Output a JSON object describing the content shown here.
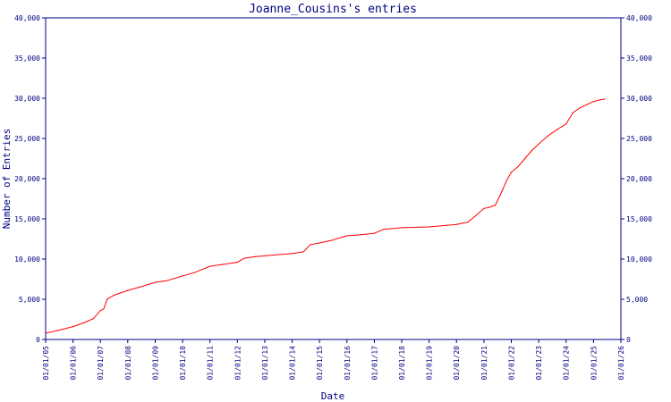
{
  "chart_data": {
    "type": "line",
    "title": "Joanne_Cousins's entries",
    "xlabel": "Date",
    "ylabel": "Number of Entries",
    "ylim": [
      0,
      40000
    ],
    "y_ticks": [
      "0",
      "5,000",
      "10,000",
      "15,000",
      "20,000",
      "25,000",
      "30,000",
      "35,000",
      "40,000"
    ],
    "x_ticks": [
      "01/01/05",
      "01/01/06",
      "01/01/07",
      "01/01/08",
      "01/01/09",
      "01/01/10",
      "01/01/11",
      "01/01/12",
      "01/01/13",
      "01/01/14",
      "01/01/15",
      "01/01/16",
      "01/01/17",
      "01/01/18",
      "01/01/19",
      "01/01/20",
      "01/01/21",
      "01/01/22",
      "01/01/23",
      "01/01/24",
      "01/01/25",
      "01/01/26"
    ],
    "grid": false,
    "line_color": "#ff0000",
    "axis_color": "#000080",
    "series": [
      {
        "points": [
          [
            "2005-01-15",
            800
          ],
          [
            "2005-06-01",
            1100
          ],
          [
            "2006-01-01",
            1600
          ],
          [
            "2006-06-01",
            2100
          ],
          [
            "2006-10-01",
            2600
          ],
          [
            "2007-01-01",
            3600
          ],
          [
            "2007-02-15",
            3800
          ],
          [
            "2007-04-01",
            5000
          ],
          [
            "2007-07-01",
            5500
          ],
          [
            "2008-01-01",
            6100
          ],
          [
            "2008-06-01",
            6500
          ],
          [
            "2009-01-01",
            7100
          ],
          [
            "2009-06-01",
            7300
          ],
          [
            "2010-01-01",
            7900
          ],
          [
            "2010-06-01",
            8300
          ],
          [
            "2011-01-01",
            9100
          ],
          [
            "2011-06-01",
            9300
          ],
          [
            "2012-01-01",
            9600
          ],
          [
            "2012-04-01",
            10100
          ],
          [
            "2012-09-01",
            10300
          ],
          [
            "2013-01-01",
            10400
          ],
          [
            "2014-01-01",
            10700
          ],
          [
            "2014-06-01",
            10900
          ],
          [
            "2014-09-01",
            11800
          ],
          [
            "2015-01-01",
            12000
          ],
          [
            "2015-06-01",
            12300
          ],
          [
            "2016-01-01",
            12900
          ],
          [
            "2016-06-01",
            13000
          ],
          [
            "2017-01-01",
            13200
          ],
          [
            "2017-05-01",
            13700
          ],
          [
            "2018-01-01",
            13900
          ],
          [
            "2019-01-01",
            14000
          ],
          [
            "2020-01-01",
            14300
          ],
          [
            "2020-06-01",
            14600
          ],
          [
            "2020-09-01",
            15300
          ],
          [
            "2021-01-01",
            16300
          ],
          [
            "2021-03-01",
            16400
          ],
          [
            "2021-06-01",
            16700
          ],
          [
            "2021-09-01",
            18500
          ],
          [
            "2021-11-01",
            19800
          ],
          [
            "2022-01-01",
            20800
          ],
          [
            "2022-04-01",
            21500
          ],
          [
            "2022-07-01",
            22500
          ],
          [
            "2022-10-01",
            23500
          ],
          [
            "2023-01-01",
            24300
          ],
          [
            "2023-05-01",
            25300
          ],
          [
            "2023-09-01",
            26100
          ],
          [
            "2024-01-01",
            26800
          ],
          [
            "2024-04-01",
            28200
          ],
          [
            "2024-07-01",
            28800
          ],
          [
            "2024-10-01",
            29200
          ],
          [
            "2025-01-01",
            29600
          ],
          [
            "2025-04-01",
            29800
          ],
          [
            "2025-06-01",
            29900
          ]
        ]
      }
    ]
  }
}
